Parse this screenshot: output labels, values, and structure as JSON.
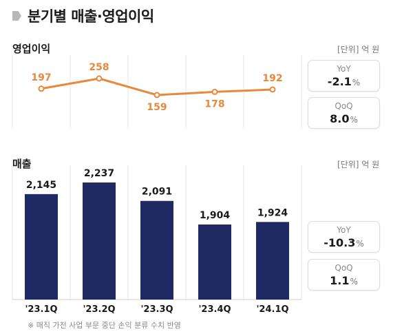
{
  "title": "분기별 매출·영업이익",
  "operating_profit": {
    "label": "영업이익",
    "unit": "[단위] 억 원",
    "yoy": {
      "label": "YoY",
      "value": "-2.1",
      "suffix": "%"
    },
    "qoq": {
      "label": "QoQ",
      "value": "8.0",
      "suffix": "%"
    }
  },
  "revenue": {
    "label": "매출",
    "unit": "[단위] 억 원",
    "yoy": {
      "label": "YoY",
      "value": "-10.3",
      "suffix": "%"
    },
    "qoq": {
      "label": "QoQ",
      "value": "1.1",
      "suffix": "%"
    }
  },
  "footnote": "※ 매직 가전 사업 부문 중단 손익 분류 수치 반영",
  "colors": {
    "line": "#e8883a",
    "bar": "#1f2a63",
    "grid": "#e6e6e6"
  },
  "chart_data": [
    {
      "type": "line",
      "title": "영업이익",
      "categories": [
        "'23.1Q",
        "'23.2Q",
        "'23.3Q",
        "'23.4Q",
        "'24.1Q"
      ],
      "values": [
        197,
        258,
        159,
        178,
        192
      ],
      "labels": [
        "197",
        "258",
        "159",
        "178",
        "192"
      ],
      "ylabel": "억 원",
      "ylim": [
        140,
        280
      ]
    },
    {
      "type": "bar",
      "title": "매출",
      "categories": [
        "'23.1Q",
        "'23.2Q",
        "'23.3Q",
        "'23.4Q",
        "'24.1Q"
      ],
      "values": [
        2145,
        2237,
        2091,
        1904,
        1924
      ],
      "labels": [
        "2,145",
        "2,237",
        "2,091",
        "1,904",
        "1,924"
      ],
      "ylabel": "억 원",
      "ylim": [
        1500,
        2300
      ]
    }
  ]
}
